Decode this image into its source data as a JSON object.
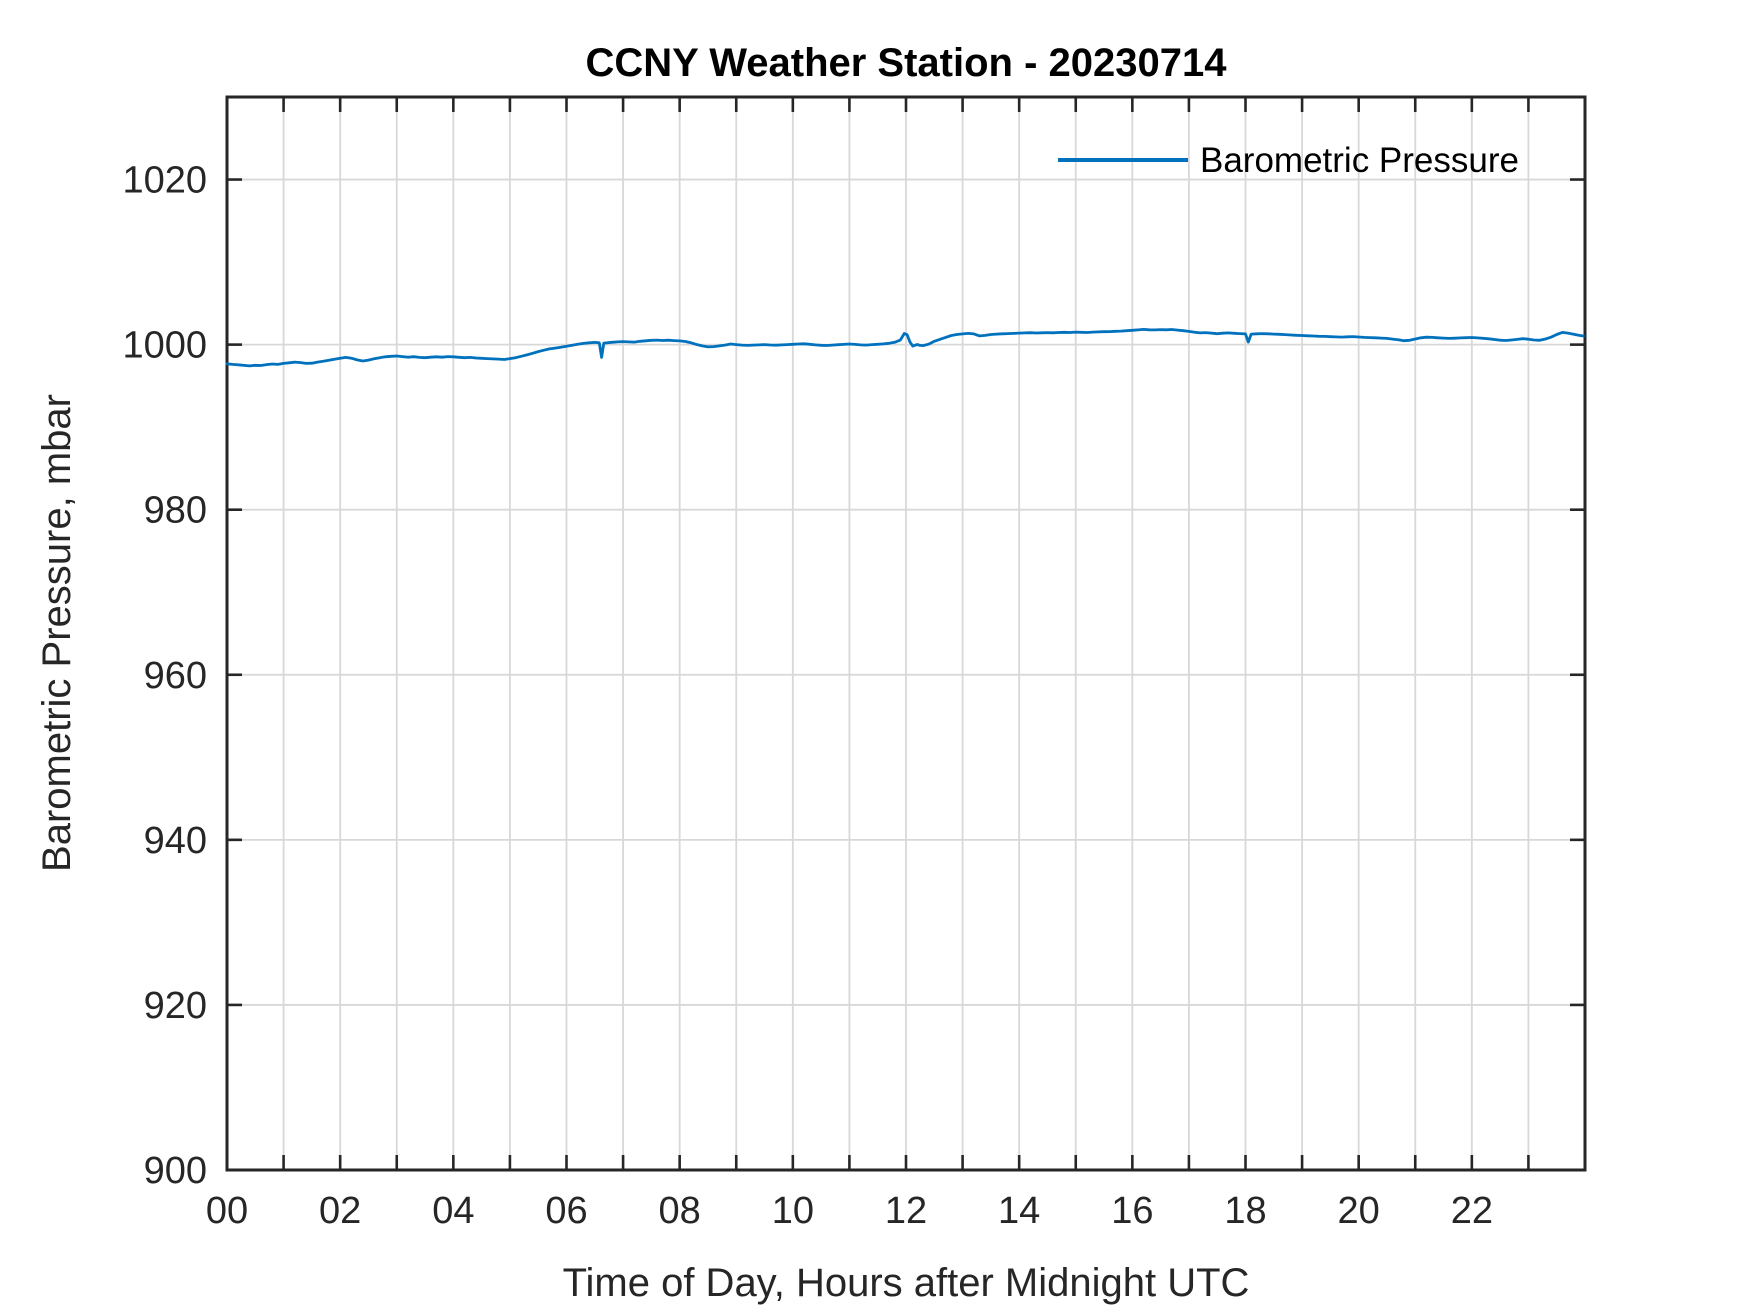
{
  "chart_data": {
    "type": "line",
    "title": "CCNY Weather Station - 20230714",
    "xlabel": "Time of Day, Hours after Midnight UTC",
    "ylabel": "Barometric Pressure, mbar",
    "xlim": [
      0,
      24
    ],
    "ylim": [
      900,
      1030
    ],
    "xticks": [
      0,
      1,
      2,
      3,
      4,
      5,
      6,
      7,
      8,
      9,
      10,
      11,
      12,
      13,
      14,
      15,
      16,
      17,
      18,
      19,
      20,
      21,
      22,
      23,
      24
    ],
    "xtick_label_values": [
      0,
      2,
      4,
      6,
      8,
      10,
      12,
      14,
      16,
      18,
      20,
      22
    ],
    "xtick_labels": [
      "00",
      "02",
      "04",
      "06",
      "08",
      "10",
      "12",
      "14",
      "16",
      "18",
      "20",
      "22"
    ],
    "yticks": [
      900,
      920,
      940,
      960,
      980,
      1000,
      1020
    ],
    "ytick_labels": [
      "900",
      "920",
      "940",
      "960",
      "980",
      "1000",
      "1020"
    ],
    "grid": true,
    "legend": {
      "box": false,
      "position": "upper-right-inside",
      "entries": [
        {
          "label": "Barometric Pressure",
          "color": "#0072BD"
        }
      ]
    },
    "series": [
      {
        "name": "Barometric Pressure",
        "color": "#0072BD",
        "points": [
          [
            0.0,
            997.68
          ],
          [
            0.1,
            997.6
          ],
          [
            0.2,
            997.55
          ],
          [
            0.3,
            997.48
          ],
          [
            0.4,
            997.42
          ],
          [
            0.5,
            997.5
          ],
          [
            0.6,
            997.47
          ],
          [
            0.7,
            997.58
          ],
          [
            0.8,
            997.65
          ],
          [
            0.9,
            997.6
          ],
          [
            1.0,
            997.72
          ],
          [
            1.1,
            997.8
          ],
          [
            1.2,
            997.88
          ],
          [
            1.3,
            997.82
          ],
          [
            1.4,
            997.72
          ],
          [
            1.5,
            997.75
          ],
          [
            1.6,
            997.88
          ],
          [
            1.7,
            997.98
          ],
          [
            1.8,
            998.1
          ],
          [
            1.9,
            998.22
          ],
          [
            2.0,
            998.35
          ],
          [
            2.1,
            998.45
          ],
          [
            2.2,
            998.35
          ],
          [
            2.3,
            998.15
          ],
          [
            2.4,
            998.02
          ],
          [
            2.5,
            998.12
          ],
          [
            2.6,
            998.28
          ],
          [
            2.7,
            998.42
          ],
          [
            2.8,
            998.52
          ],
          [
            2.9,
            998.58
          ],
          [
            3.0,
            998.62
          ],
          [
            3.1,
            998.55
          ],
          [
            3.2,
            998.48
          ],
          [
            3.3,
            998.53
          ],
          [
            3.4,
            998.45
          ],
          [
            3.5,
            998.42
          ],
          [
            3.6,
            998.48
          ],
          [
            3.7,
            998.52
          ],
          [
            3.8,
            998.47
          ],
          [
            3.9,
            998.55
          ],
          [
            4.0,
            998.52
          ],
          [
            4.1,
            998.46
          ],
          [
            4.2,
            998.42
          ],
          [
            4.3,
            998.45
          ],
          [
            4.4,
            998.38
          ],
          [
            4.5,
            998.34
          ],
          [
            4.6,
            998.3
          ],
          [
            4.7,
            998.27
          ],
          [
            4.8,
            998.24
          ],
          [
            4.9,
            998.2
          ],
          [
            5.0,
            998.3
          ],
          [
            5.1,
            998.42
          ],
          [
            5.2,
            998.58
          ],
          [
            5.3,
            998.75
          ],
          [
            5.4,
            998.95
          ],
          [
            5.5,
            999.15
          ],
          [
            5.6,
            999.32
          ],
          [
            5.7,
            999.48
          ],
          [
            5.8,
            999.58
          ],
          [
            5.9,
            999.68
          ],
          [
            6.0,
            999.8
          ],
          [
            6.1,
            999.92
          ],
          [
            6.2,
            1000.05
          ],
          [
            6.3,
            1000.15
          ],
          [
            6.4,
            1000.22
          ],
          [
            6.5,
            1000.27
          ],
          [
            6.58,
            1000.22
          ],
          [
            6.62,
            998.45
          ],
          [
            6.66,
            1000.18
          ],
          [
            6.8,
            1000.28
          ],
          [
            6.9,
            1000.33
          ],
          [
            7.0,
            1000.37
          ],
          [
            7.1,
            1000.33
          ],
          [
            7.2,
            1000.3
          ],
          [
            7.3,
            1000.4
          ],
          [
            7.4,
            1000.46
          ],
          [
            7.5,
            1000.52
          ],
          [
            7.6,
            1000.55
          ],
          [
            7.7,
            1000.5
          ],
          [
            7.8,
            1000.54
          ],
          [
            7.9,
            1000.49
          ],
          [
            8.0,
            1000.45
          ],
          [
            8.1,
            1000.38
          ],
          [
            8.2,
            1000.22
          ],
          [
            8.3,
            1000.02
          ],
          [
            8.4,
            999.85
          ],
          [
            8.5,
            999.72
          ],
          [
            8.6,
            999.76
          ],
          [
            8.7,
            999.84
          ],
          [
            8.8,
            999.94
          ],
          [
            8.9,
            1000.08
          ],
          [
            9.0,
            1000.0
          ],
          [
            9.1,
            999.94
          ],
          [
            9.2,
            999.9
          ],
          [
            9.3,
            999.94
          ],
          [
            9.4,
            999.97
          ],
          [
            9.5,
            1000.0
          ],
          [
            9.6,
            999.95
          ],
          [
            9.7,
            999.93
          ],
          [
            9.8,
            999.97
          ],
          [
            9.9,
            1000.0
          ],
          [
            10.0,
            1000.04
          ],
          [
            10.1,
            1000.08
          ],
          [
            10.2,
            1000.1
          ],
          [
            10.3,
            1000.04
          ],
          [
            10.4,
            999.97
          ],
          [
            10.5,
            999.92
          ],
          [
            10.6,
            999.89
          ],
          [
            10.7,
            999.94
          ],
          [
            10.8,
            999.99
          ],
          [
            10.9,
            1000.03
          ],
          [
            11.0,
            1000.07
          ],
          [
            11.1,
            1000.03
          ],
          [
            11.2,
            999.97
          ],
          [
            11.3,
            999.94
          ],
          [
            11.4,
            1000.0
          ],
          [
            11.5,
            1000.04
          ],
          [
            11.6,
            1000.09
          ],
          [
            11.7,
            1000.16
          ],
          [
            11.8,
            1000.28
          ],
          [
            11.9,
            1000.55
          ],
          [
            11.97,
            1001.35
          ],
          [
            12.02,
            1001.2
          ],
          [
            12.07,
            1000.3
          ],
          [
            12.12,
            999.82
          ],
          [
            12.2,
            1000.02
          ],
          [
            12.25,
            999.9
          ],
          [
            12.3,
            999.88
          ],
          [
            12.4,
            1000.05
          ],
          [
            12.5,
            1000.4
          ],
          [
            12.6,
            1000.65
          ],
          [
            12.7,
            1000.88
          ],
          [
            12.8,
            1001.1
          ],
          [
            12.9,
            1001.22
          ],
          [
            13.0,
            1001.3
          ],
          [
            13.1,
            1001.36
          ],
          [
            13.2,
            1001.3
          ],
          [
            13.3,
            1001.05
          ],
          [
            13.4,
            1001.12
          ],
          [
            13.5,
            1001.22
          ],
          [
            13.6,
            1001.28
          ],
          [
            13.7,
            1001.31
          ],
          [
            13.8,
            1001.34
          ],
          [
            13.9,
            1001.36
          ],
          [
            14.0,
            1001.39
          ],
          [
            14.1,
            1001.42
          ],
          [
            14.2,
            1001.44
          ],
          [
            14.3,
            1001.41
          ],
          [
            14.4,
            1001.43
          ],
          [
            14.5,
            1001.45
          ],
          [
            14.6,
            1001.43
          ],
          [
            14.7,
            1001.47
          ],
          [
            14.8,
            1001.49
          ],
          [
            14.9,
            1001.47
          ],
          [
            15.0,
            1001.52
          ],
          [
            15.1,
            1001.49
          ],
          [
            15.2,
            1001.47
          ],
          [
            15.3,
            1001.52
          ],
          [
            15.4,
            1001.54
          ],
          [
            15.5,
            1001.56
          ],
          [
            15.6,
            1001.58
          ],
          [
            15.7,
            1001.61
          ],
          [
            15.8,
            1001.64
          ],
          [
            15.9,
            1001.68
          ],
          [
            16.0,
            1001.73
          ],
          [
            16.1,
            1001.78
          ],
          [
            16.2,
            1001.84
          ],
          [
            16.3,
            1001.8
          ],
          [
            16.4,
            1001.78
          ],
          [
            16.5,
            1001.82
          ],
          [
            16.6,
            1001.8
          ],
          [
            16.7,
            1001.83
          ],
          [
            16.8,
            1001.76
          ],
          [
            16.9,
            1001.68
          ],
          [
            17.0,
            1001.6
          ],
          [
            17.1,
            1001.5
          ],
          [
            17.2,
            1001.42
          ],
          [
            17.3,
            1001.46
          ],
          [
            17.4,
            1001.4
          ],
          [
            17.5,
            1001.32
          ],
          [
            17.6,
            1001.38
          ],
          [
            17.7,
            1001.42
          ],
          [
            17.8,
            1001.37
          ],
          [
            17.9,
            1001.33
          ],
          [
            18.0,
            1001.3
          ],
          [
            18.05,
            1000.3
          ],
          [
            18.1,
            1001.27
          ],
          [
            18.2,
            1001.31
          ],
          [
            18.3,
            1001.34
          ],
          [
            18.4,
            1001.31
          ],
          [
            18.5,
            1001.28
          ],
          [
            18.6,
            1001.25
          ],
          [
            18.7,
            1001.21
          ],
          [
            18.8,
            1001.17
          ],
          [
            18.9,
            1001.13
          ],
          [
            19.0,
            1001.1
          ],
          [
            19.1,
            1001.07
          ],
          [
            19.2,
            1001.04
          ],
          [
            19.3,
            1001.01
          ],
          [
            19.4,
            1000.99
          ],
          [
            19.5,
            1000.96
          ],
          [
            19.6,
            1000.94
          ],
          [
            19.7,
            1000.91
          ],
          [
            19.8,
            1000.95
          ],
          [
            19.9,
            1000.97
          ],
          [
            20.0,
            1000.92
          ],
          [
            20.1,
            1000.88
          ],
          [
            20.2,
            1000.85
          ],
          [
            20.3,
            1000.82
          ],
          [
            20.4,
            1000.79
          ],
          [
            20.5,
            1000.75
          ],
          [
            20.6,
            1000.67
          ],
          [
            20.7,
            1000.58
          ],
          [
            20.8,
            1000.48
          ],
          [
            20.9,
            1000.52
          ],
          [
            21.0,
            1000.68
          ],
          [
            21.1,
            1000.82
          ],
          [
            21.2,
            1000.9
          ],
          [
            21.3,
            1000.87
          ],
          [
            21.4,
            1000.83
          ],
          [
            21.5,
            1000.79
          ],
          [
            21.6,
            1000.75
          ],
          [
            21.7,
            1000.78
          ],
          [
            21.8,
            1000.81
          ],
          [
            21.9,
            1000.84
          ],
          [
            22.0,
            1000.86
          ],
          [
            22.1,
            1000.81
          ],
          [
            22.2,
            1000.77
          ],
          [
            22.3,
            1000.7
          ],
          [
            22.4,
            1000.62
          ],
          [
            22.5,
            1000.54
          ],
          [
            22.6,
            1000.5
          ],
          [
            22.7,
            1000.56
          ],
          [
            22.8,
            1000.63
          ],
          [
            22.9,
            1000.72
          ],
          [
            23.0,
            1000.66
          ],
          [
            23.1,
            1000.56
          ],
          [
            23.2,
            1000.52
          ],
          [
            23.3,
            1000.68
          ],
          [
            23.4,
            1000.9
          ],
          [
            23.5,
            1001.22
          ],
          [
            23.6,
            1001.48
          ],
          [
            23.7,
            1001.4
          ],
          [
            23.8,
            1001.26
          ],
          [
            23.9,
            1001.12
          ],
          [
            23.97,
            1001.04
          ]
        ]
      }
    ]
  }
}
